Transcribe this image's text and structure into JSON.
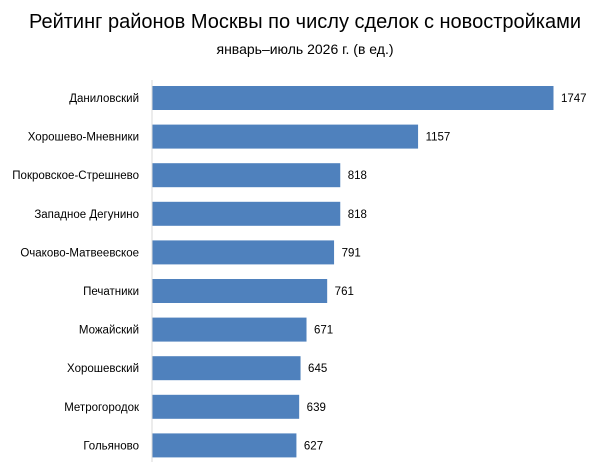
{
  "header": {
    "title": "Рейтинг районов Москвы по числу сделок с новостройками",
    "subtitle": "январь–июль 2026 г. (в ед.)"
  },
  "chart_data": {
    "type": "bar",
    "orientation": "horizontal",
    "title": "Рейтинг районов Москвы по числу сделок с новостройками",
    "subtitle": "январь–июль 2026 г. (в ед.)",
    "categories": [
      "Даниловский",
      "Хорошево-Мневники",
      "Покровское-Стрешнево",
      "Западное Дегунино",
      "Очаково-Матвеевское",
      "Печатники",
      "Можайский",
      "Хорошевский",
      "Метрогородок",
      "Гольяново"
    ],
    "values": [
      1747,
      1157,
      818,
      818,
      791,
      761,
      671,
      645,
      639,
      627
    ],
    "xlim": [
      0,
      1800
    ],
    "grid": false,
    "bar_color": "#4F81BD",
    "axis_color": "#D9D9D9"
  }
}
